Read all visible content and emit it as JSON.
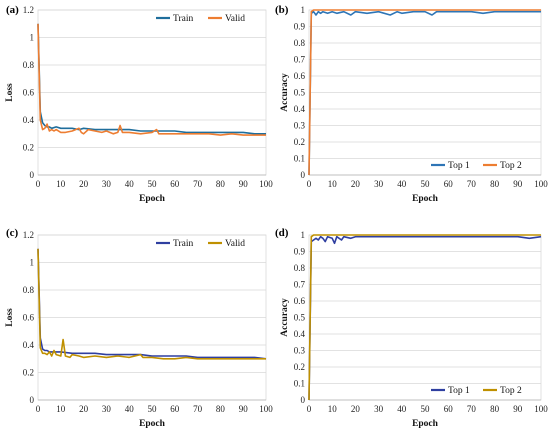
{
  "chart_data": [
    {
      "panel_label": "(a)",
      "type": "line",
      "xlabel": "Epoch",
      "ylabel": "Loss",
      "xlim": [
        0,
        100
      ],
      "ylim": [
        0,
        1.2
      ],
      "xticks": [
        0,
        10,
        20,
        30,
        40,
        50,
        60,
        70,
        80,
        90,
        100
      ],
      "yticks": [
        0,
        0.2,
        0.4,
        0.6,
        0.8,
        1,
        1.2
      ],
      "ytick_labels": [
        "0",
        "0.2",
        "0.4",
        "0.6",
        "0.8",
        "1",
        "1.2"
      ],
      "grid": "horizontal",
      "legend_position": "top-right",
      "series": [
        {
          "name": "Train",
          "color": "#1f6e9c",
          "points": [
            [
              0,
              1.1
            ],
            [
              1,
              0.46
            ],
            [
              2,
              0.38
            ],
            [
              3,
              0.36
            ],
            [
              4,
              0.35
            ],
            [
              5,
              0.35
            ],
            [
              6,
              0.34
            ],
            [
              8,
              0.35
            ],
            [
              10,
              0.34
            ],
            [
              12,
              0.34
            ],
            [
              15,
              0.34
            ],
            [
              18,
              0.33
            ],
            [
              20,
              0.34
            ],
            [
              25,
              0.33
            ],
            [
              30,
              0.33
            ],
            [
              35,
              0.33
            ],
            [
              40,
              0.33
            ],
            [
              45,
              0.32
            ],
            [
              50,
              0.32
            ],
            [
              55,
              0.32
            ],
            [
              60,
              0.32
            ],
            [
              65,
              0.31
            ],
            [
              70,
              0.31
            ],
            [
              75,
              0.31
            ],
            [
              80,
              0.31
            ],
            [
              85,
              0.31
            ],
            [
              90,
              0.31
            ],
            [
              95,
              0.3
            ],
            [
              100,
              0.3
            ]
          ]
        },
        {
          "name": "Valid",
          "color": "#ed7d31",
          "points": [
            [
              0,
              1.1
            ],
            [
              1,
              0.4
            ],
            [
              2,
              0.33
            ],
            [
              3,
              0.34
            ],
            [
              4,
              0.37
            ],
            [
              5,
              0.32
            ],
            [
              6,
              0.33
            ],
            [
              7,
              0.32
            ],
            [
              8,
              0.33
            ],
            [
              10,
              0.31
            ],
            [
              12,
              0.31
            ],
            [
              15,
              0.32
            ],
            [
              18,
              0.34
            ],
            [
              19,
              0.31
            ],
            [
              20,
              0.3
            ],
            [
              22,
              0.33
            ],
            [
              25,
              0.32
            ],
            [
              28,
              0.31
            ],
            [
              30,
              0.32
            ],
            [
              33,
              0.3
            ],
            [
              35,
              0.31
            ],
            [
              36,
              0.36
            ],
            [
              37,
              0.31
            ],
            [
              40,
              0.31
            ],
            [
              45,
              0.3
            ],
            [
              50,
              0.31
            ],
            [
              52,
              0.33
            ],
            [
              53,
              0.3
            ],
            [
              55,
              0.3
            ],
            [
              60,
              0.3
            ],
            [
              65,
              0.3
            ],
            [
              70,
              0.3
            ],
            [
              75,
              0.3
            ],
            [
              80,
              0.29
            ],
            [
              85,
              0.3
            ],
            [
              90,
              0.29
            ],
            [
              95,
              0.29
            ],
            [
              100,
              0.29
            ]
          ]
        }
      ]
    },
    {
      "panel_label": "(b)",
      "type": "line",
      "xlabel": "Epoch",
      "ylabel": "Accuracy",
      "xlim": [
        0,
        100
      ],
      "ylim": [
        0,
        1
      ],
      "xticks": [
        0,
        10,
        20,
        30,
        40,
        50,
        60,
        70,
        80,
        90,
        100
      ],
      "yticks": [
        0,
        0.1,
        0.2,
        0.3,
        0.4,
        0.5,
        0.6,
        0.7,
        0.8,
        0.9,
        1
      ],
      "ytick_labels": [
        "0",
        "0.1",
        "0.2",
        "0.3",
        "0.4",
        "0.5",
        "0.6",
        "0.7",
        "0.8",
        "0.9",
        "1"
      ],
      "grid": "horizontal",
      "legend_position": "bottom-right",
      "series": [
        {
          "name": "Top 1",
          "color": "#2e75b6",
          "points": [
            [
              0,
              0
            ],
            [
              1,
              0.98
            ],
            [
              2,
              0.99
            ],
            [
              3,
              0.97
            ],
            [
              4,
              0.99
            ],
            [
              5,
              0.98
            ],
            [
              6,
              0.99
            ],
            [
              8,
              0.98
            ],
            [
              10,
              0.99
            ],
            [
              12,
              0.98
            ],
            [
              15,
              0.99
            ],
            [
              18,
              0.97
            ],
            [
              20,
              0.99
            ],
            [
              25,
              0.98
            ],
            [
              30,
              0.99
            ],
            [
              35,
              0.97
            ],
            [
              38,
              0.99
            ],
            [
              40,
              0.98
            ],
            [
              45,
              0.99
            ],
            [
              50,
              0.99
            ],
            [
              53,
              0.97
            ],
            [
              55,
              0.99
            ],
            [
              60,
              0.99
            ],
            [
              65,
              0.99
            ],
            [
              70,
              0.99
            ],
            [
              75,
              0.98
            ],
            [
              80,
              0.99
            ],
            [
              90,
              0.99
            ],
            [
              100,
              0.99
            ]
          ]
        },
        {
          "name": "Top 2",
          "color": "#ed7d31",
          "points": [
            [
              0,
              0
            ],
            [
              1,
              0.99
            ],
            [
              2,
              1
            ],
            [
              100,
              1
            ]
          ]
        }
      ]
    },
    {
      "panel_label": "(c)",
      "type": "line",
      "xlabel": "Epoch",
      "ylabel": "Loss",
      "xlim": [
        0,
        100
      ],
      "ylim": [
        0,
        1.2
      ],
      "xticks": [
        0,
        10,
        20,
        30,
        40,
        50,
        60,
        70,
        80,
        90,
        100
      ],
      "yticks": [
        0,
        0.2,
        0.4,
        0.6,
        0.8,
        1,
        1.2
      ],
      "ytick_labels": [
        "0",
        "0.2",
        "0.4",
        "0.6",
        "0.8",
        "1",
        "1.2"
      ],
      "grid": "horizontal",
      "legend_position": "top-right",
      "series": [
        {
          "name": "Train",
          "color": "#2f3fa0",
          "points": [
            [
              0,
              1.1
            ],
            [
              1,
              0.45
            ],
            [
              2,
              0.37
            ],
            [
              3,
              0.36
            ],
            [
              4,
              0.36
            ],
            [
              5,
              0.35
            ],
            [
              8,
              0.35
            ],
            [
              10,
              0.35
            ],
            [
              15,
              0.34
            ],
            [
              20,
              0.34
            ],
            [
              25,
              0.34
            ],
            [
              30,
              0.33
            ],
            [
              35,
              0.33
            ],
            [
              40,
              0.33
            ],
            [
              45,
              0.33
            ],
            [
              50,
              0.32
            ],
            [
              55,
              0.32
            ],
            [
              60,
              0.32
            ],
            [
              65,
              0.32
            ],
            [
              70,
              0.31
            ],
            [
              75,
              0.31
            ],
            [
              80,
              0.31
            ],
            [
              85,
              0.31
            ],
            [
              90,
              0.31
            ],
            [
              95,
              0.31
            ],
            [
              100,
              0.3
            ]
          ]
        },
        {
          "name": "Valid",
          "color": "#bf9000",
          "points": [
            [
              0,
              1.1
            ],
            [
              1,
              0.38
            ],
            [
              2,
              0.34
            ],
            [
              3,
              0.34
            ],
            [
              4,
              0.33
            ],
            [
              5,
              0.35
            ],
            [
              6,
              0.32
            ],
            [
              7,
              0.36
            ],
            [
              8,
              0.33
            ],
            [
              10,
              0.32
            ],
            [
              11,
              0.44
            ],
            [
              12,
              0.32
            ],
            [
              14,
              0.31
            ],
            [
              15,
              0.33
            ],
            [
              18,
              0.32
            ],
            [
              20,
              0.31
            ],
            [
              25,
              0.32
            ],
            [
              30,
              0.31
            ],
            [
              35,
              0.32
            ],
            [
              40,
              0.31
            ],
            [
              45,
              0.33
            ],
            [
              46,
              0.31
            ],
            [
              50,
              0.31
            ],
            [
              55,
              0.3
            ],
            [
              60,
              0.3
            ],
            [
              65,
              0.31
            ],
            [
              70,
              0.3
            ],
            [
              75,
              0.3
            ],
            [
              80,
              0.3
            ],
            [
              85,
              0.3
            ],
            [
              90,
              0.3
            ],
            [
              95,
              0.3
            ],
            [
              100,
              0.3
            ]
          ]
        }
      ]
    },
    {
      "panel_label": "(d)",
      "type": "line",
      "xlabel": "Epoch",
      "ylabel": "Accuracy",
      "xlim": [
        0,
        100
      ],
      "ylim": [
        0,
        1
      ],
      "xticks": [
        0,
        10,
        20,
        30,
        40,
        50,
        60,
        70,
        80,
        90,
        100
      ],
      "yticks": [
        0,
        0.1,
        0.2,
        0.3,
        0.4,
        0.5,
        0.6,
        0.7,
        0.8,
        0.9,
        1
      ],
      "ytick_labels": [
        "0",
        "0.1",
        "0.2",
        "0.3",
        "0.4",
        "0.5",
        "0.6",
        "0.7",
        "0.8",
        "0.9",
        "1"
      ],
      "grid": "horizontal",
      "legend_position": "bottom-right",
      "series": [
        {
          "name": "Top 1",
          "color": "#2f3fa0",
          "points": [
            [
              0,
              0
            ],
            [
              1,
              0.96
            ],
            [
              2,
              0.97
            ],
            [
              3,
              0.98
            ],
            [
              4,
              0.97
            ],
            [
              5,
              0.99
            ],
            [
              6,
              0.98
            ],
            [
              7,
              0.96
            ],
            [
              8,
              0.99
            ],
            [
              10,
              0.98
            ],
            [
              11,
              0.95
            ],
            [
              12,
              0.99
            ],
            [
              14,
              0.97
            ],
            [
              15,
              0.99
            ],
            [
              18,
              0.98
            ],
            [
              20,
              0.99
            ],
            [
              25,
              0.99
            ],
            [
              30,
              0.99
            ],
            [
              35,
              0.99
            ],
            [
              40,
              0.99
            ],
            [
              45,
              0.99
            ],
            [
              50,
              0.99
            ],
            [
              60,
              0.99
            ],
            [
              70,
              0.99
            ],
            [
              80,
              0.99
            ],
            [
              90,
              0.99
            ],
            [
              95,
              0.98
            ],
            [
              100,
              0.99
            ]
          ]
        },
        {
          "name": "Top 2",
          "color": "#bf9000",
          "points": [
            [
              0,
              0
            ],
            [
              1,
              0.99
            ],
            [
              2,
              1
            ],
            [
              100,
              1
            ]
          ]
        }
      ]
    }
  ]
}
